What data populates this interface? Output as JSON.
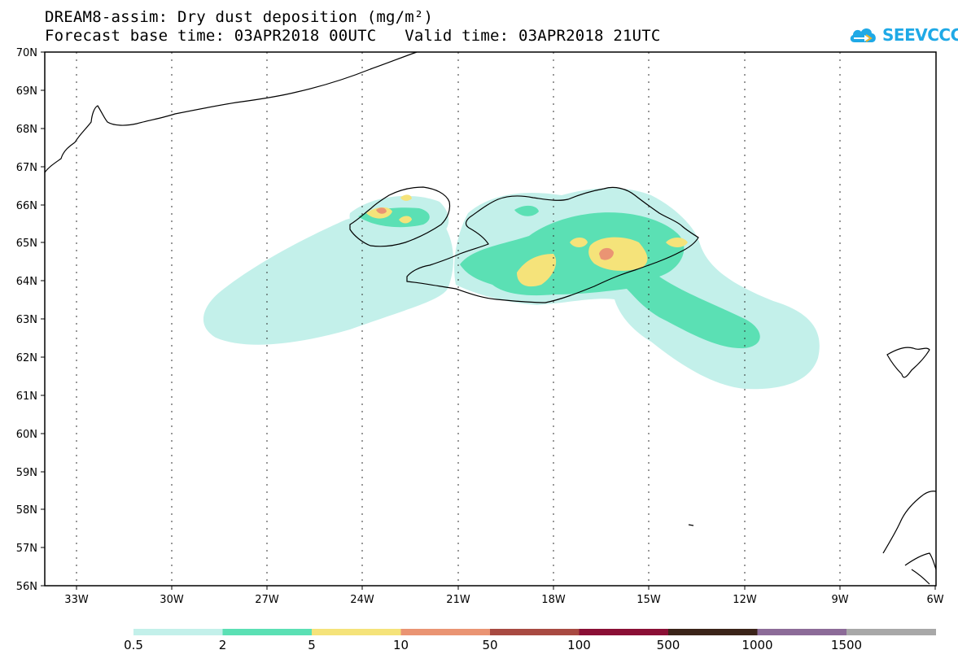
{
  "header": {
    "title_line1": "DREAM8-assim: Dry dust deposition (mg/m²)",
    "title_line2": "Forecast base time: 03APR2018 00UTC   Valid time: 03APR2018 21UTC"
  },
  "logo": {
    "text": "SEEVCCC",
    "icon": "cloud-arrow-icon",
    "color": "#1fa9e6"
  },
  "map": {
    "lat_labels": [
      "70N",
      "69N",
      "68N",
      "67N",
      "66N",
      "65N",
      "64N",
      "63N",
      "62N",
      "61N",
      "60N",
      "59N",
      "58N",
      "57N",
      "56N"
    ],
    "lon_labels": [
      "33W",
      "30W",
      "27W",
      "24W",
      "21W",
      "18W",
      "15W",
      "12W",
      "9W",
      "6W"
    ],
    "gridlines": "dotted",
    "layers": {
      "deposition_0_5": "Dust deposition 0.5-2",
      "deposition_2": "Dust deposition 2-5",
      "deposition_5": "Dust deposition 5-10",
      "deposition_10": "Dust deposition 10-50",
      "coastlines": "Coastlines"
    }
  },
  "colorbar": {
    "labels": [
      "0.5",
      "2",
      "5",
      "10",
      "50",
      "100",
      "500",
      "1000",
      "1500"
    ],
    "colors": [
      "#c3f0ea",
      "#5be0b4",
      "#f5e37a",
      "#ea9473",
      "#a84a42",
      "#8a0f35",
      "#3b2419",
      "#8c6b98",
      "#a8a8a8"
    ]
  }
}
